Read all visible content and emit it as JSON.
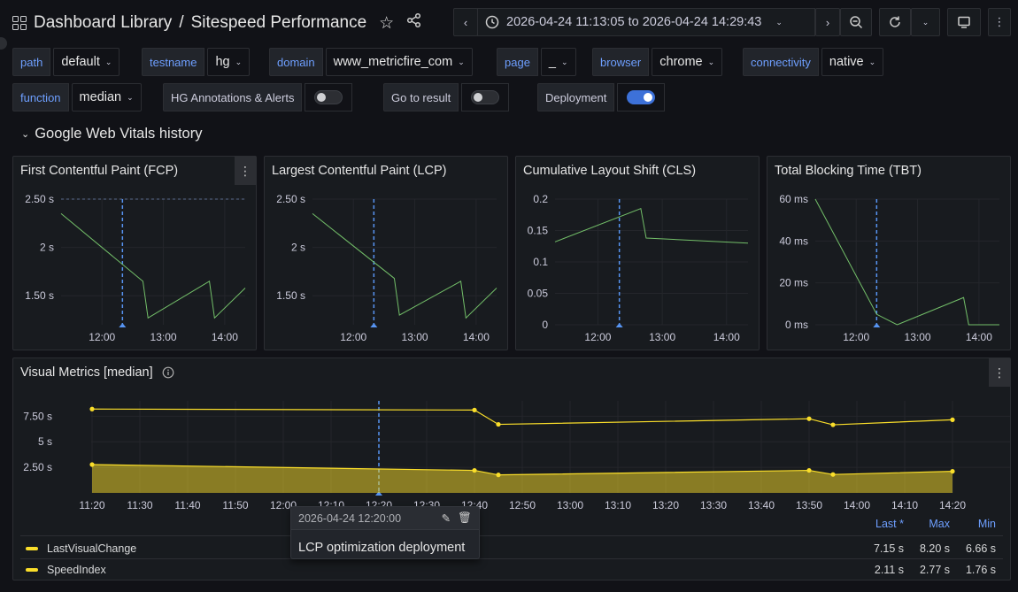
{
  "header": {
    "breadcrumb_root": "Dashboard Library",
    "breadcrumb_sep": "/",
    "breadcrumb_title": "Sitespeed Performance",
    "time_range": "2026-04-24 11:13:05 to 2026-04-24 14:29:43"
  },
  "variables": [
    {
      "label": "path",
      "value": "default"
    },
    {
      "label": "testname",
      "value": "hg"
    },
    {
      "label": "domain",
      "value": "www_metricfire_com"
    },
    {
      "label": "page",
      "value": "_"
    },
    {
      "label": "browser",
      "value": "chrome"
    },
    {
      "label": "connectivity",
      "value": "native"
    },
    {
      "label": "function",
      "value": "median"
    }
  ],
  "toggles": [
    {
      "label": "HG Annotations & Alerts",
      "on": false
    },
    {
      "label": "Go to result",
      "on": false
    },
    {
      "label": "Deployment",
      "on": true
    }
  ],
  "section_title": "Google Web Vitals history",
  "panels": [
    {
      "title": "First Contentful Paint (FCP)"
    },
    {
      "title": "Largest Contentful Paint (LCP)"
    },
    {
      "title": "Cumulative Layout Shift (CLS)"
    },
    {
      "title": "Total Blocking Time (TBT)"
    }
  ],
  "visual_panel": {
    "title": "Visual Metrics [median]"
  },
  "legend": {
    "headers": [
      "Last *",
      "Max",
      "Min"
    ],
    "rows": [
      {
        "name": "LastVisualChange",
        "last": "7.15 s",
        "max": "8.20 s",
        "min": "6.66 s"
      },
      {
        "name": "SpeedIndex",
        "last": "2.11 s",
        "max": "2.77 s",
        "min": "1.76 s"
      }
    ]
  },
  "annotation": {
    "time": "2026-04-24 12:20:00",
    "text": "LCP optimization deployment",
    "x": "12:20"
  },
  "colors": {
    "green": "#73bf69",
    "yellow": "#fade2a",
    "blue": "#5794f2"
  },
  "chart_data": [
    {
      "type": "line",
      "title": "First Contentful Paint (FCP)",
      "x": [
        "11:20",
        "12:40",
        "12:45",
        "13:45",
        "13:50",
        "14:20"
      ],
      "y_ticks": [
        "1.50 s",
        "2 s",
        "2.50 s"
      ],
      "ylim": [
        1.2,
        2.5
      ],
      "x_ticks": [
        "12:00",
        "13:00",
        "14:00"
      ],
      "series": [
        {
          "values": [
            2.35,
            1.65,
            1.27,
            1.65,
            1.27,
            1.58
          ]
        }
      ]
    },
    {
      "type": "line",
      "title": "Largest Contentful Paint (LCP)",
      "x": [
        "11:20",
        "12:40",
        "12:45",
        "13:45",
        "13:50",
        "14:20"
      ],
      "y_ticks": [
        "1.50 s",
        "2 s",
        "2.50 s"
      ],
      "ylim": [
        1.2,
        2.5
      ],
      "x_ticks": [
        "12:00",
        "13:00",
        "14:00"
      ],
      "series": [
        {
          "values": [
            2.35,
            1.68,
            1.3,
            1.65,
            1.27,
            1.58
          ]
        }
      ]
    },
    {
      "type": "line",
      "title": "Cumulative Layout Shift (CLS)",
      "x": [
        "11:20",
        "12:40",
        "12:45",
        "14:20"
      ],
      "y_ticks": [
        "0",
        "0.05",
        "0.1",
        "0.15",
        "0.2"
      ],
      "ylim": [
        0,
        0.2
      ],
      "x_ticks": [
        "12:00",
        "13:00",
        "14:00"
      ],
      "series": [
        {
          "values": [
            0.132,
            0.185,
            0.138,
            0.13
          ]
        }
      ]
    },
    {
      "type": "line",
      "title": "Total Blocking Time (TBT)",
      "x": [
        "11:20",
        "12:20",
        "12:40",
        "13:45",
        "13:50",
        "14:20"
      ],
      "y_ticks": [
        "0 ms",
        "20 ms",
        "40 ms",
        "60 ms"
      ],
      "ylim": [
        0,
        60
      ],
      "x_ticks": [
        "12:00",
        "13:00",
        "14:00"
      ],
      "series": [
        {
          "values": [
            60,
            5,
            0,
            13,
            0,
            0
          ]
        }
      ]
    },
    {
      "type": "line",
      "title": "Visual Metrics [median]",
      "x": [
        "11:20",
        "12:40",
        "12:45",
        "13:50",
        "13:55",
        "14:20"
      ],
      "y_ticks": [
        "2.50 s",
        "5 s",
        "7.50 s"
      ],
      "ylim": [
        0,
        9
      ],
      "x_ticks": [
        "11:20",
        "11:30",
        "11:40",
        "11:50",
        "12:00",
        "12:10",
        "12:20",
        "12:30",
        "12:40",
        "12:50",
        "13:00",
        "13:10",
        "13:20",
        "13:30",
        "13:40",
        "13:50",
        "14:00",
        "14:10",
        "14:20"
      ],
      "series": [
        {
          "name": "LastVisualChange",
          "values": [
            8.2,
            8.1,
            6.7,
            7.25,
            6.66,
            7.15
          ]
        },
        {
          "name": "SpeedIndex",
          "values": [
            2.77,
            2.2,
            1.76,
            2.2,
            1.8,
            2.11
          ]
        }
      ]
    }
  ]
}
